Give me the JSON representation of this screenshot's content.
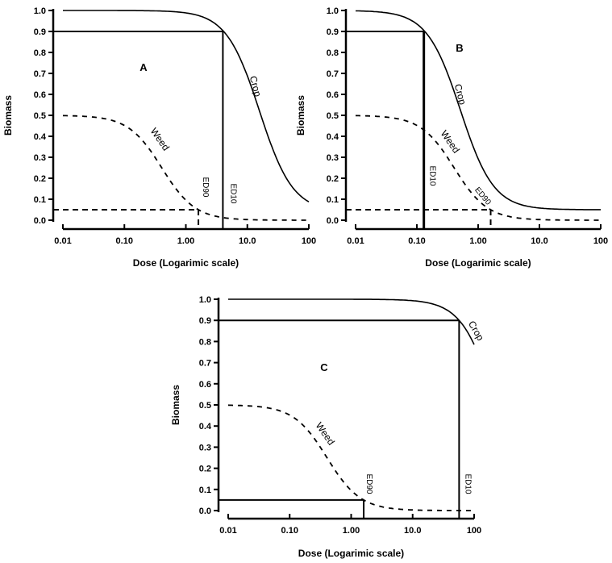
{
  "figure": {
    "description": "Dose-response curves of crop and weed biomass vs herbicide dose"
  },
  "chart_data": [
    {
      "type": "line",
      "panel": "A",
      "xlabel": "Dose (Logarimic scale)",
      "ylabel": "Biomass",
      "xscale": "log",
      "xlim": [
        0.01,
        100
      ],
      "ylim": [
        0.0,
        1.0
      ],
      "x_ticks": [
        0.01,
        0.1,
        1,
        10,
        100
      ],
      "x_tick_labels": [
        "0.01",
        "0.10",
        "1.00",
        "10.0",
        "100"
      ],
      "y_ticks": [
        0.0,
        0.1,
        0.2,
        0.3,
        0.4,
        0.5,
        0.6,
        0.7,
        0.8,
        0.9,
        1.0
      ],
      "y_tick_labels": [
        "0.0",
        "0.1",
        "0.2",
        "0.3",
        "0.4",
        "0.5",
        "0.6",
        "0.7",
        "0.8",
        "0.9",
        "1.0"
      ],
      "series": [
        {
          "name": "Crop",
          "style": "solid",
          "model": "log-logistic",
          "upper": 1.0,
          "lower": 0.04,
          "ed10": 4.0,
          "slope": 1.6
        },
        {
          "name": "Weed",
          "style": "dashed",
          "model": "log-logistic",
          "upper": 0.5,
          "lower": 0.0,
          "ed90": 1.6,
          "slope": 1.6
        }
      ],
      "reference_lines": [
        {
          "label": "ED10",
          "dose": 4.0,
          "biomass": 0.9,
          "style": "solid"
        },
        {
          "label": "ED90",
          "dose": 1.6,
          "biomass": 0.05,
          "style": "dashed"
        }
      ]
    },
    {
      "type": "line",
      "panel": "B",
      "xlabel": "Dose (Logarimic scale)",
      "ylabel": "Biomass",
      "xscale": "log",
      "xlim": [
        0.01,
        100
      ],
      "ylim": [
        0.0,
        1.0
      ],
      "x_ticks": [
        0.01,
        0.1,
        1,
        10,
        100
      ],
      "x_tick_labels": [
        "0.01",
        "0.10",
        "1.00",
        "10.0",
        "100"
      ],
      "y_ticks": [
        0.0,
        0.1,
        0.2,
        0.3,
        0.4,
        0.5,
        0.6,
        0.7,
        0.8,
        0.9,
        1.0
      ],
      "y_tick_labels": [
        "0.0",
        "0.1",
        "0.2",
        "0.3",
        "0.4",
        "0.5",
        "0.6",
        "0.7",
        "0.8",
        "0.9",
        "1.0"
      ],
      "series": [
        {
          "name": "Crop",
          "style": "solid",
          "model": "log-logistic",
          "upper": 1.0,
          "lower": 0.05,
          "ed10": 0.13,
          "slope": 1.6
        },
        {
          "name": "Weed",
          "style": "dashed",
          "model": "log-logistic",
          "upper": 0.5,
          "lower": 0.0,
          "ed90": 1.6,
          "slope": 1.6
        }
      ],
      "reference_lines": [
        {
          "label": "ED10",
          "dose": 0.13,
          "biomass": 0.9,
          "style": "solid"
        },
        {
          "label": "ED90",
          "dose": 1.6,
          "biomass": 0.05,
          "style": "dashed"
        }
      ]
    },
    {
      "type": "line",
      "panel": "C",
      "xlabel": "Dose (Logarimic scale)",
      "ylabel": "Biomass",
      "xscale": "log",
      "xlim": [
        0.01,
        100
      ],
      "ylim": [
        0.0,
        1.0
      ],
      "x_ticks": [
        0.01,
        0.1,
        1,
        10,
        100
      ],
      "x_tick_labels": [
        "0.01",
        "0.10",
        "1.00",
        "10.0",
        "100"
      ],
      "y_ticks": [
        0.0,
        0.1,
        0.2,
        0.3,
        0.4,
        0.5,
        0.6,
        0.7,
        0.8,
        0.9,
        1.0
      ],
      "y_tick_labels": [
        "0.0",
        "0.1",
        "0.2",
        "0.3",
        "0.4",
        "0.5",
        "0.6",
        "0.7",
        "0.8",
        "0.9",
        "1.0"
      ],
      "series": [
        {
          "name": "Crop",
          "style": "solid",
          "model": "log-logistic",
          "upper": 1.0,
          "lower": 0.0,
          "ed10": 57,
          "slope": 1.6,
          "x_end": 100
        },
        {
          "name": "Weed",
          "style": "dashed",
          "model": "log-logistic",
          "upper": 0.5,
          "lower": 0.0,
          "ed90": 1.6,
          "slope": 1.6
        }
      ],
      "reference_lines": [
        {
          "label": "ED10",
          "dose": 57,
          "biomass": 0.9,
          "style": "solid"
        },
        {
          "label": "ED90",
          "dose": 1.6,
          "biomass": 0.05,
          "style": "solid"
        }
      ]
    }
  ]
}
